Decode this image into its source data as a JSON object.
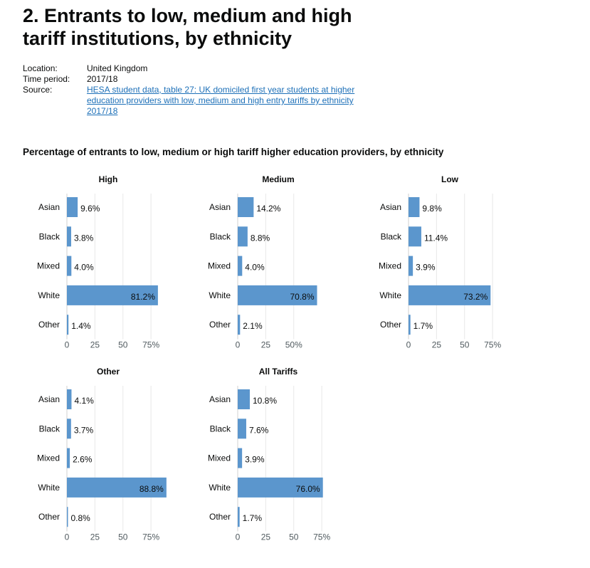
{
  "page": {
    "heading": "2. Entrants to low, medium and high tariff institutions, by ethnicity"
  },
  "meta": {
    "location_label": "Location:",
    "location_value": "United Kingdom",
    "time_label": "Time period:",
    "time_value": "2017/18",
    "source_label": "Source:",
    "source_link": "HESA student data, table 27: UK domiciled first year students at higher education providers with low, medium and high entry tariffs by ethnicity 2017/18"
  },
  "colors": {
    "bar": "#5b96cd",
    "grid": "#e8e8e8",
    "axis": "#d0d0d0",
    "text": "#0b0c0c",
    "link": "#1d70b8"
  },
  "chart_data": {
    "type": "bar",
    "orientation": "horizontal",
    "title": "Percentage of entrants to low, medium or high tariff higher education providers, by ethnicity",
    "categories": [
      "Asian",
      "Black",
      "Mixed",
      "White",
      "Other"
    ],
    "panels": [
      {
        "name": "High",
        "values": [
          9.6,
          3.8,
          4.0,
          81.2,
          1.4
        ],
        "labels": [
          "9.6%",
          "3.8%",
          "4.0%",
          "81.2%",
          "1.4%"
        ],
        "xlim": [
          0,
          90
        ],
        "ticks": [
          0,
          25,
          50,
          75
        ],
        "tick_labels": [
          "0",
          "25",
          "50",
          "75%"
        ]
      },
      {
        "name": "Medium",
        "values": [
          14.2,
          8.8,
          4.0,
          70.8,
          2.1
        ],
        "labels": [
          "14.2%",
          "8.8%",
          "4.0%",
          "70.8%",
          "2.1%"
        ],
        "xlim": [
          0,
          75
        ],
        "ticks": [
          0,
          25,
          50
        ],
        "tick_labels": [
          "0",
          "25",
          "50%"
        ]
      },
      {
        "name": "Low",
        "values": [
          9.8,
          11.4,
          3.9,
          73.2,
          1.7
        ],
        "labels": [
          "9.8%",
          "11.4%",
          "3.9%",
          "73.2%",
          "1.7%"
        ],
        "xlim": [
          0,
          90
        ],
        "ticks": [
          0,
          25,
          50,
          75
        ],
        "tick_labels": [
          "0",
          "25",
          "50",
          "75%"
        ]
      },
      {
        "name": "Other",
        "values": [
          4.1,
          3.7,
          2.6,
          88.8,
          0.8
        ],
        "labels": [
          "4.1%",
          "3.7%",
          "2.6%",
          "88.8%",
          "0.8%"
        ],
        "xlim": [
          0,
          90
        ],
        "ticks": [
          0,
          25,
          50,
          75
        ],
        "tick_labels": [
          "0",
          "25",
          "50",
          "75%"
        ]
      },
      {
        "name": "All Tariffs",
        "values": [
          10.8,
          7.6,
          3.9,
          76.0,
          1.7
        ],
        "labels": [
          "10.8%",
          "7.6%",
          "3.9%",
          "76.0%",
          "1.7%"
        ],
        "xlim": [
          0,
          90
        ],
        "ticks": [
          0,
          25,
          50,
          75
        ],
        "tick_labels": [
          "0",
          "25",
          "50",
          "75%"
        ]
      }
    ],
    "grid": true,
    "legend": "none"
  }
}
